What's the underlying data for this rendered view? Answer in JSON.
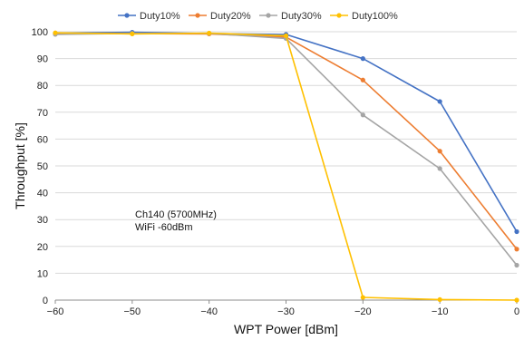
{
  "chart_data": {
    "type": "line",
    "title": "",
    "xlabel": "WPT Power [dBm]",
    "ylabel": "Throughput [%]",
    "x": [
      -60,
      -50,
      -40,
      -30,
      -20,
      -10,
      0
    ],
    "xlim": [
      -60,
      0
    ],
    "ylim": [
      0,
      100
    ],
    "x_ticks": [
      -60,
      -50,
      -40,
      -30,
      -20,
      -10,
      0
    ],
    "y_ticks": [
      0,
      10,
      20,
      30,
      40,
      50,
      60,
      70,
      80,
      90,
      100
    ],
    "grid": "horizontal",
    "legend_position": "top",
    "series": [
      {
        "name": "Duty10%",
        "color": "#4472C4",
        "values": [
          99.5,
          99.8,
          99.3,
          99.0,
          90.0,
          74.0,
          25.5
        ]
      },
      {
        "name": "Duty20%",
        "color": "#ED7D31",
        "values": [
          99.3,
          99.3,
          99.2,
          98.0,
          82.0,
          55.5,
          19.0
        ]
      },
      {
        "name": "Duty30%",
        "color": "#A5A5A5",
        "values": [
          99.0,
          99.4,
          99.4,
          97.5,
          69.0,
          49.0,
          13.0
        ]
      },
      {
        "name": "Duty100%",
        "color": "#FFC000",
        "values": [
          99.6,
          99.2,
          99.5,
          98.5,
          1.0,
          0.2,
          0.0
        ]
      }
    ],
    "annotations": [
      "Ch140 (5700MHz)",
      "WiFi -60dBm"
    ]
  }
}
